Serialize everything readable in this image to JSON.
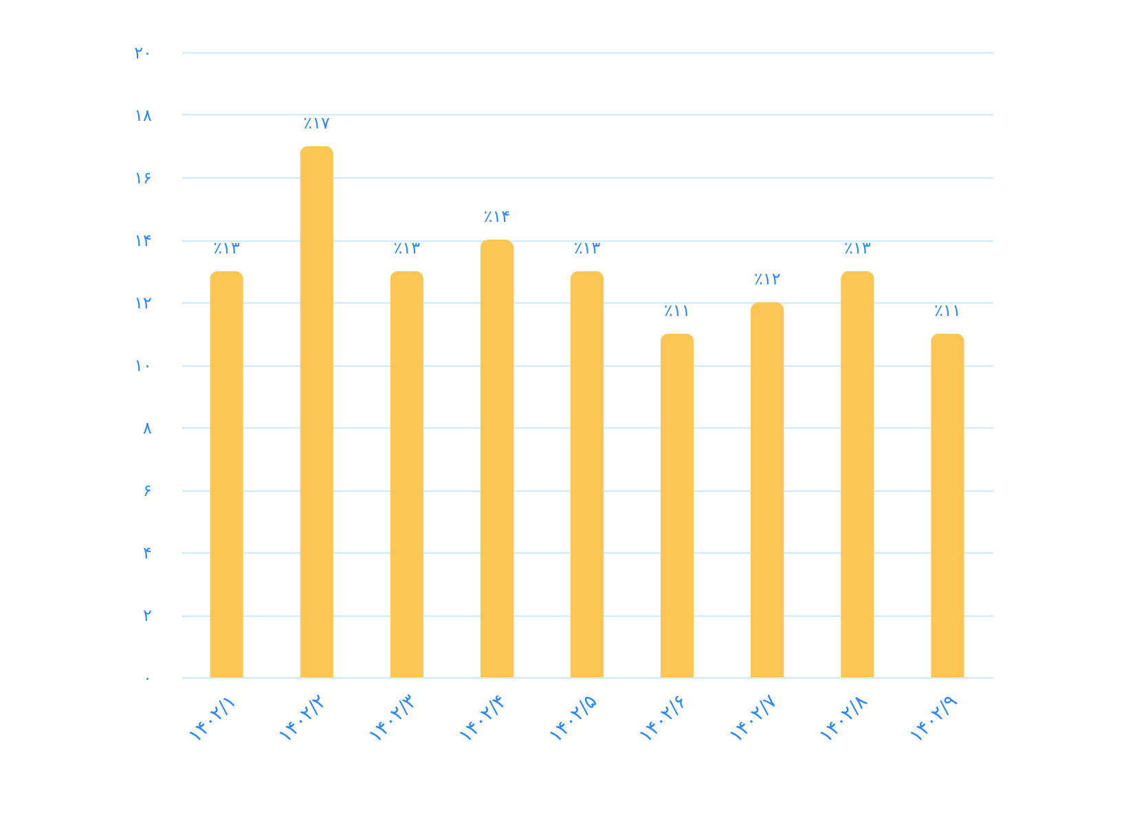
{
  "chart_data": {
    "type": "bar",
    "categories": [
      "۱۴۰۲/۱",
      "۱۴۰۲/۲",
      "۱۴۰۲/۳",
      "۱۴۰۲/۴",
      "۱۴۰۲/۵",
      "۱۴۰۲/۶",
      "۱۴۰۲/۷",
      "۱۴۰۲/۸",
      "۱۴۰۲/۹"
    ],
    "values": [
      13,
      17,
      13,
      14,
      13,
      11,
      12,
      13,
      11
    ],
    "value_labels": [
      "٪۱۳",
      "٪۱۷",
      "٪۱۳",
      "٪۱۴",
      "٪۱۳",
      "٪۱۱",
      "٪۱۲",
      "٪۱۳",
      "٪۱۱"
    ],
    "color": "#fcc655",
    "ylim": [
      0,
      20
    ],
    "yticks": [
      {
        "value": 0,
        "label": "۰"
      },
      {
        "value": 2,
        "label": "۲"
      },
      {
        "value": 4,
        "label": "۴"
      },
      {
        "value": 6,
        "label": "۶"
      },
      {
        "value": 8,
        "label": "۸"
      },
      {
        "value": 10,
        "label": "۱۰"
      },
      {
        "value": 12,
        "label": "۱۲"
      },
      {
        "value": 14,
        "label": "۱۴"
      },
      {
        "value": 16,
        "label": "۱۶"
      },
      {
        "value": 18,
        "label": "۱۸"
      },
      {
        "value": 20,
        "label": "۲۰"
      }
    ],
    "grid": "y"
  }
}
